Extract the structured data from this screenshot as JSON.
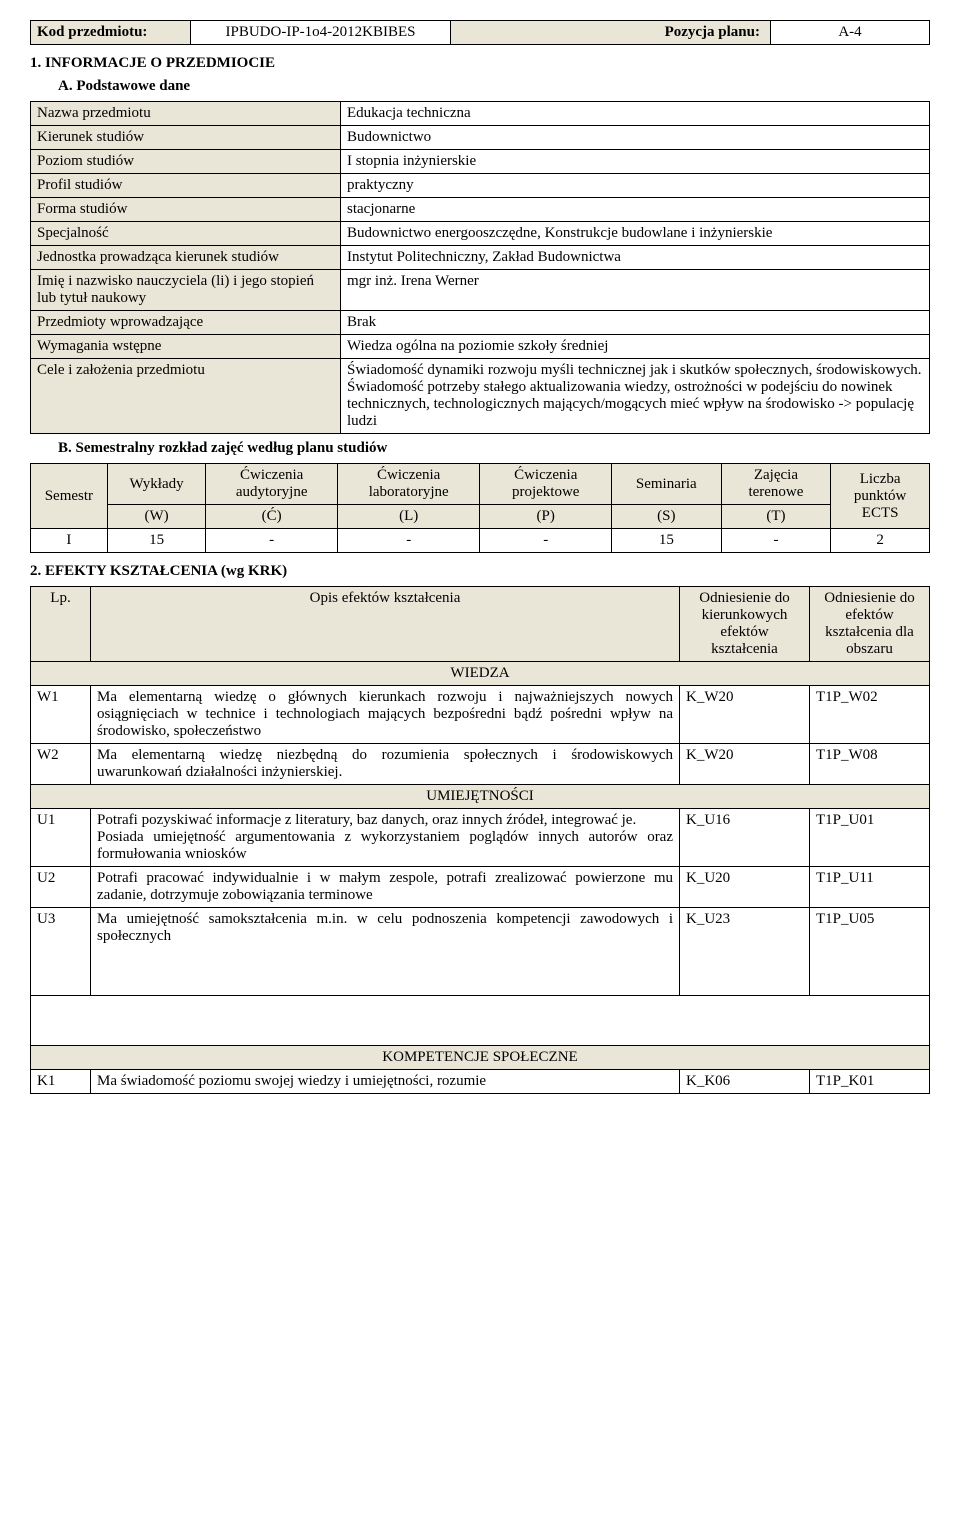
{
  "header": {
    "code_label": "Kod przedmiotu:",
    "code_value": "IPBUDO-IP-1o4-2012KBIBES",
    "pos_label": "Pozycja planu:",
    "pos_value": "A-4"
  },
  "section1_title": "1.  INFORMACJE O PRZEDMIOCIE",
  "sectionA_title": "A. Podstawowe dane",
  "basic": [
    {
      "label": "Nazwa przedmiotu",
      "value": "Edukacja techniczna"
    },
    {
      "label": "Kierunek studiów",
      "value": "Budownictwo"
    },
    {
      "label": "Poziom studiów",
      "value": "I stopnia inżynierskie"
    },
    {
      "label": "Profil studiów",
      "value": "praktyczny"
    },
    {
      "label": "Forma studiów",
      "value": "stacjonarne"
    },
    {
      "label": "Specjalność",
      "value": "Budownictwo energooszczędne, Konstrukcje budowlane i inżynierskie"
    },
    {
      "label": "Jednostka prowadząca kierunek studiów",
      "value": "Instytut Politechniczny, Zakład Budownictwa"
    },
    {
      "label": "Imię i nazwisko nauczyciela (li) i jego stopień lub tytuł naukowy",
      "value": "mgr inż. Irena Werner"
    },
    {
      "label": "Przedmioty wprowadzające",
      "value": "Brak"
    },
    {
      "label": "Wymagania wstępne",
      "value": "Wiedza ogólna na poziomie szkoły średniej"
    },
    {
      "label": "Cele i założenia przedmiotu",
      "value": "Świadomość dynamiki rozwoju myśli technicznej jak i skutków społecznych, środowiskowych. Świadomość potrzeby stałego aktualizowania wiedzy, ostrożności w podejściu do nowinek technicznych, technologicznych mających/mogących mieć wpływ na środowisko -> populację ludzi"
    }
  ],
  "sectionB_title": "B. Semestralny rozkład zajęć według planu studiów",
  "schedule": {
    "headers": {
      "sem": "Semestr",
      "w_top": "Wykłady",
      "w_bot": "(W)",
      "c_top": "Ćwiczenia audytoryjne",
      "c_bot": "(Ć)",
      "l_top": "Ćwiczenia laboratoryjne",
      "l_bot": "(L)",
      "p_top": "Ćwiczenia projektowe",
      "p_bot": "(P)",
      "s_top": "Seminaria",
      "s_bot": "(S)",
      "t_top": "Zajęcia terenowe",
      "t_bot": "(T)",
      "ects": "Liczba punktów ECTS"
    },
    "row": {
      "sem": "I",
      "w": "15",
      "c": "-",
      "l": "-",
      "p": "-",
      "s": "15",
      "t": "-",
      "ects": "2"
    }
  },
  "section2_title": "2.  EFEKTY KSZTAŁCENIA (wg KRK)",
  "effects": {
    "head": {
      "lp": "Lp.",
      "desc": "Opis efektów kształcenia",
      "ref1": "Odniesienie do kierunkowych efektów kształcenia",
      "ref2": "Odniesienie do efektów kształcenia dla obszaru"
    },
    "sec_wiedza": "WIEDZA",
    "sec_um": "UMIEJĘTNOŚCI",
    "sec_komp": "KOMPETENCJE SPOŁECZNE",
    "rows_w": [
      {
        "lp": "W1",
        "desc": "Ma elementarną wiedzę o głównych kierunkach rozwoju i najważniejszych nowych osiągnięciach w technice i technologiach mających bezpośredni bądź pośredni wpływ na środowisko, społeczeństwo",
        "r1": "K_W20",
        "r2": "T1P_W02"
      },
      {
        "lp": "W2",
        "desc": "Ma elementarną wiedzę niezbędną do rozumienia społecznych i środowiskowych uwarunkowań działalności inżynierskiej.",
        "r1": "K_W20",
        "r2": "T1P_W08"
      }
    ],
    "rows_u": [
      {
        "lp": "U1",
        "desc": "Potrafi pozyskiwać informacje z literatury, baz danych, oraz innych źródeł, integrować je.\nPosiada umiejętność argumentowania z wykorzystaniem poglądów innych autorów oraz formułowania wniosków",
        "r1": "K_U16",
        "r2": "T1P_U01"
      },
      {
        "lp": "U2",
        "desc": "Potrafi pracować indywidualnie i w małym zespole, potrafi zrealizować powierzone mu zadanie, dotrzymuje zobowiązania terminowe",
        "r1": "K_U20",
        "r2": "T1P_U11"
      },
      {
        "lp": "U3",
        "desc": "Ma umiejętność samokształcenia m.in. w celu podnoszenia kompetencji zawodowych i społecznych",
        "r1": "K_U23",
        "r2": "T1P_U05"
      }
    ],
    "rows_k": [
      {
        "lp": "K1",
        "desc": "Ma świadomość poziomu swojej wiedzy i umiejętności, rozumie",
        "r1": "K_K06",
        "r2": "T1P_K01"
      }
    ]
  },
  "style": {
    "label_bg": "#eae6d7",
    "border": "#000000",
    "font": "Times New Roman",
    "base_fontsize": 15
  }
}
